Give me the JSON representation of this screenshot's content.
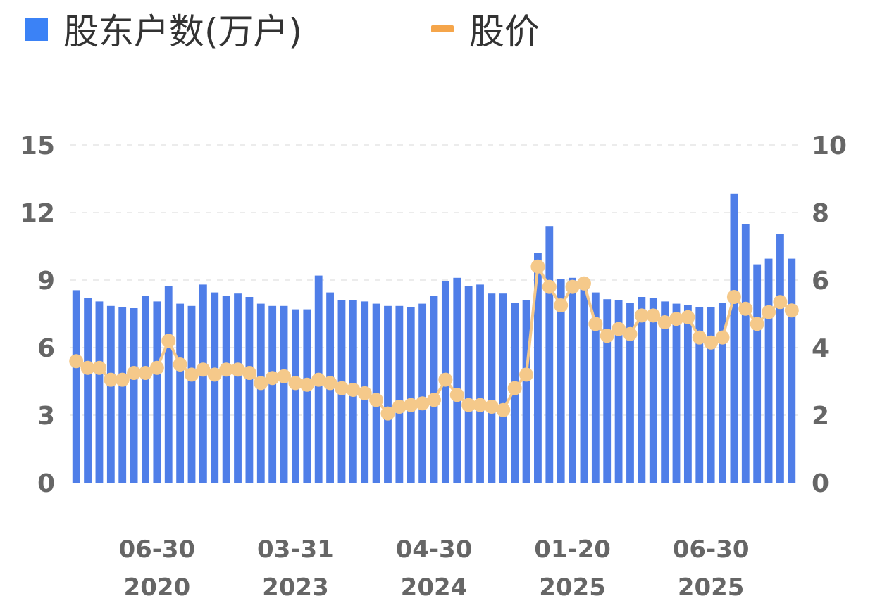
{
  "chart_data": {
    "type": "bar",
    "legend": {
      "position": "top-left",
      "items": [
        {
          "name": "股东户数(万户)",
          "marker": "square",
          "color": "#3b82f6"
        },
        {
          "name": "股价",
          "marker": "dash",
          "color": "#f5a54a"
        }
      ]
    },
    "y_left": {
      "ticks": [
        "0",
        "3",
        "6",
        "9",
        "12",
        "15"
      ],
      "range": [
        0,
        15
      ]
    },
    "y_right": {
      "ticks": [
        "0",
        "2",
        "4",
        "6",
        "8",
        "10"
      ],
      "range": [
        0,
        10
      ]
    },
    "grid": true,
    "x_tick_labels": [
      {
        "date": "06-30",
        "year": "2020",
        "index": 7
      },
      {
        "date": "03-31",
        "year": "2023",
        "index": 19
      },
      {
        "date": "04-30",
        "year": "2024",
        "index": 31
      },
      {
        "date": "01-20",
        "year": "2025",
        "index": 43
      },
      {
        "date": "06-30",
        "year": "2025",
        "index": 55
      }
    ],
    "series": [
      {
        "name": "股东户数(万户)",
        "type": "bar",
        "axis": "left",
        "color": "#4f7ee8",
        "values": [
          8.55,
          8.2,
          8.05,
          7.85,
          7.8,
          7.75,
          8.3,
          8.05,
          8.75,
          7.95,
          7.85,
          8.8,
          8.45,
          8.3,
          8.4,
          8.25,
          7.95,
          7.85,
          7.85,
          7.7,
          7.7,
          9.2,
          8.45,
          8.1,
          8.1,
          8.05,
          7.95,
          7.85,
          7.85,
          7.8,
          7.95,
          8.3,
          8.95,
          9.1,
          8.75,
          8.8,
          8.4,
          8.4,
          8.0,
          8.1,
          10.2,
          11.4,
          9.05,
          9.1,
          8.85,
          8.45,
          8.15,
          8.1,
          8.0,
          8.25,
          8.2,
          8.05,
          7.95,
          7.9,
          7.8,
          7.8,
          8.0,
          12.85,
          11.5,
          9.7,
          9.95,
          11.05,
          9.95
        ]
      },
      {
        "name": "股价",
        "type": "line",
        "axis": "right",
        "color": "#f5c98a",
        "values": [
          3.6,
          3.4,
          3.4,
          3.05,
          3.05,
          3.25,
          3.25,
          3.4,
          4.2,
          3.5,
          3.2,
          3.35,
          3.2,
          3.35,
          3.35,
          3.25,
          2.95,
          3.1,
          3.15,
          2.95,
          2.9,
          3.05,
          2.95,
          2.8,
          2.75,
          2.65,
          2.45,
          2.05,
          2.25,
          2.3,
          2.35,
          2.45,
          3.05,
          2.6,
          2.3,
          2.3,
          2.25,
          2.15,
          2.8,
          3.2,
          6.4,
          5.8,
          5.25,
          5.8,
          5.9,
          4.7,
          4.35,
          4.55,
          4.4,
          4.95,
          4.95,
          4.75,
          4.85,
          4.9,
          4.3,
          4.15,
          4.3,
          5.5,
          5.15,
          4.7,
          5.05,
          5.35,
          5.1
        ]
      }
    ]
  }
}
